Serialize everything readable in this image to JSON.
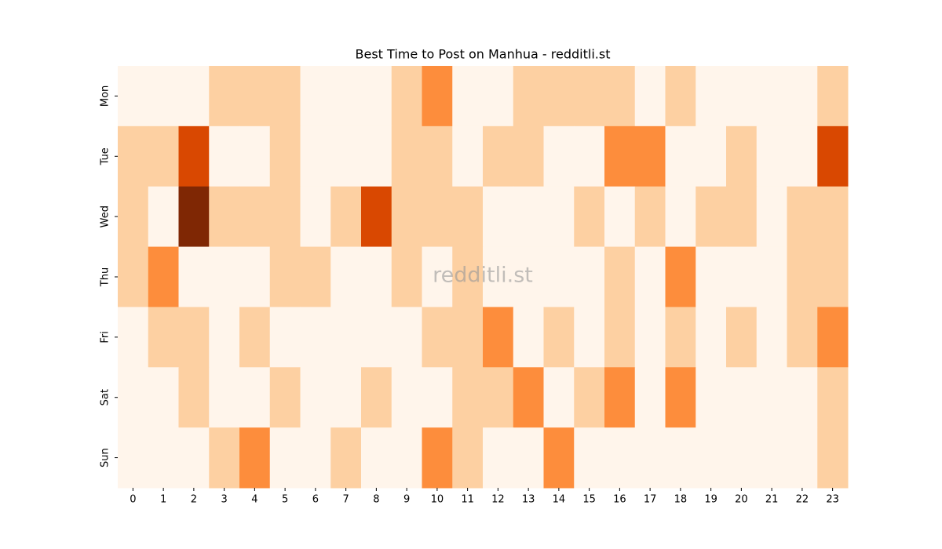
{
  "chart_data": {
    "type": "heatmap",
    "title": "Best Time to Post on Manhua - redditli.st",
    "watermark": "redditli.st",
    "x": [
      0,
      1,
      2,
      3,
      4,
      5,
      6,
      7,
      8,
      9,
      10,
      11,
      12,
      13,
      14,
      15,
      16,
      17,
      18,
      19,
      20,
      21,
      22,
      23
    ],
    "y": [
      "Mon",
      "Tue",
      "Wed",
      "Thu",
      "Fri",
      "Sat",
      "Sun"
    ],
    "values": [
      [
        0,
        0,
        0,
        1,
        1,
        1,
        0,
        0,
        0,
        1,
        2,
        0,
        0,
        1,
        1,
        1,
        1,
        0,
        1,
        0,
        0,
        0,
        0,
        1
      ],
      [
        1,
        1,
        3,
        0,
        0,
        1,
        0,
        0,
        0,
        1,
        1,
        0,
        1,
        1,
        0,
        0,
        2,
        2,
        0,
        0,
        1,
        0,
        0,
        3
      ],
      [
        1,
        0,
        4,
        1,
        1,
        1,
        0,
        1,
        3,
        1,
        1,
        1,
        0,
        0,
        0,
        1,
        0,
        1,
        0,
        1,
        1,
        0,
        1,
        1
      ],
      [
        1,
        2,
        0,
        0,
        0,
        1,
        1,
        0,
        0,
        1,
        0,
        1,
        0,
        0,
        0,
        0,
        1,
        0,
        2,
        0,
        0,
        0,
        1,
        1
      ],
      [
        0,
        1,
        1,
        0,
        1,
        0,
        0,
        0,
        0,
        0,
        1,
        1,
        2,
        0,
        1,
        0,
        1,
        0,
        1,
        0,
        1,
        0,
        1,
        2
      ],
      [
        0,
        0,
        1,
        0,
        0,
        1,
        0,
        0,
        1,
        0,
        0,
        1,
        1,
        2,
        0,
        1,
        2,
        0,
        2,
        0,
        0,
        0,
        0,
        1
      ],
      [
        0,
        0,
        0,
        1,
        2,
        0,
        0,
        1,
        0,
        0,
        2,
        1,
        0,
        0,
        2,
        0,
        0,
        0,
        0,
        0,
        0,
        0,
        0,
        1
      ]
    ],
    "colormap": [
      "#fff5eb",
      "#fdd0a2",
      "#fd8d3c",
      "#d94801",
      "#7f2704"
    ]
  }
}
